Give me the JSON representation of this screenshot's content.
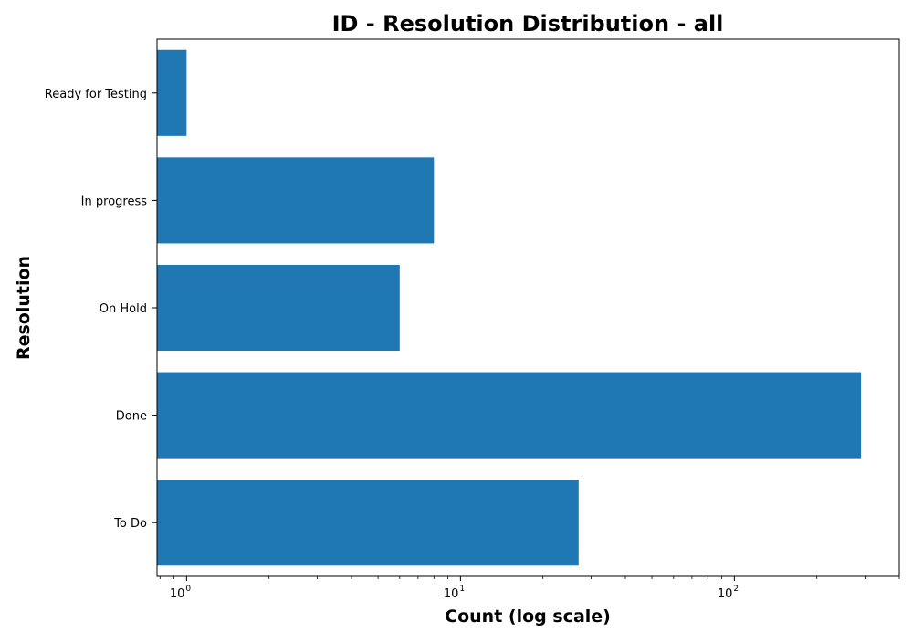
{
  "chart_data": {
    "type": "bar",
    "orientation": "horizontal",
    "title": "ID - Resolution Distribution - all",
    "xlabel": "Count (log scale)",
    "ylabel": "Resolution",
    "xscale": "log",
    "xlim": [
      0.78,
      400
    ],
    "categories": [
      "To Do",
      "Done",
      "On Hold",
      "In progress",
      "Ready for Testing"
    ],
    "values": [
      27,
      290,
      6,
      8,
      1
    ],
    "x_ticks": [
      {
        "value": 1,
        "base": "10",
        "exp": "0"
      },
      {
        "value": 10,
        "base": "10",
        "exp": "1"
      },
      {
        "value": 100,
        "base": "10",
        "exp": "2"
      }
    ],
    "bar_color": "#1f77b4",
    "grid": false,
    "legend": "none"
  }
}
